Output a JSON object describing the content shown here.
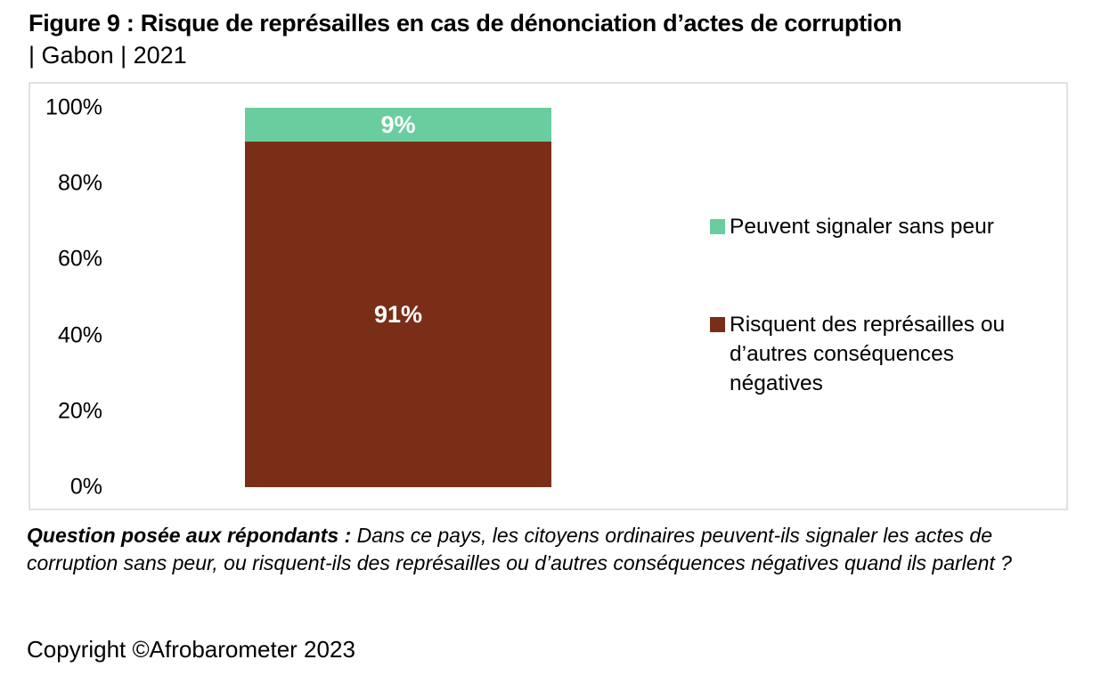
{
  "figure": {
    "title_line1": "Figure 9 : Risque de représailles en cas de dénonciation d’actes de corruption",
    "title_line2": "| Gabon | 2021"
  },
  "chart_data": {
    "type": "bar",
    "stacked": true,
    "orientation": "vertical",
    "categories": [
      "Gabon 2021"
    ],
    "series": [
      {
        "name": "Peuvent signaler sans peur",
        "values": [
          9
        ],
        "data_label": "9%",
        "color": "#69CD9F"
      },
      {
        "name": "Risquent des représailles ou d’autres conséquences négatives",
        "values": [
          91
        ],
        "data_label": "91%",
        "color": "#7A2E17"
      }
    ],
    "title": "Figure 9 : Risque de représailles en cas de dénonciation d’actes de corruption | Gabon | 2021",
    "xlabel": "",
    "ylabel": "",
    "ylim": [
      0,
      100
    ],
    "yticks": [
      0,
      20,
      40,
      60,
      80,
      100
    ],
    "ytick_labels": [
      "0%",
      "20%",
      "40%",
      "60%",
      "80%",
      "100%"
    ],
    "grid": false,
    "legend_position": "right",
    "bar_label_color": "#ffffff",
    "frame_border_color": "#e1e1e1"
  },
  "legend": {
    "items": [
      {
        "label": "Peuvent signaler sans peur",
        "color": "#69CD9F"
      },
      {
        "label": "Risquent des représailles ou\nd’autres conséquences\nnégatives",
        "color": "#7A2E17"
      }
    ]
  },
  "footnote": {
    "lead": "Question posée aux répondants :",
    "body": " Dans ce pays, les citoyens ordinaires peuvent-ils signaler les actes de corruption sans peur, ou risquent-ils des représailles ou d’autres conséquences négatives quand ils parlent ?"
  },
  "copyright": "Copyright ©Afrobarometer 2023"
}
